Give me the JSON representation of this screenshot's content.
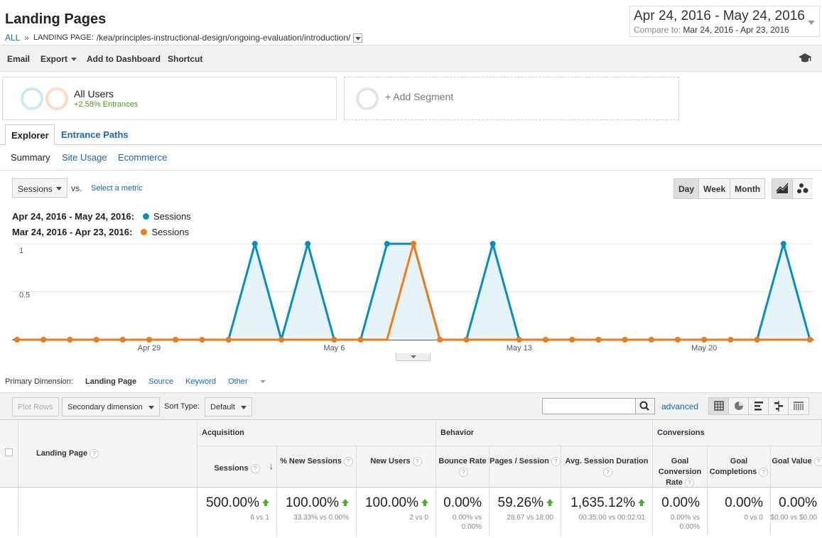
{
  "header": {
    "title": "Landing Pages",
    "crumb_all": "ALL",
    "crumb_sep": "»",
    "crumb_label": "LANDING PAGE:",
    "crumb_value": "/kea/principles-instructional-design/ongoing-evaluation/introduction/"
  },
  "date_range": {
    "main": "Apr 24, 2016 - May 24, 2016",
    "compare_label": "Compare to:",
    "compare_value": "Mar 24, 2016 - Apr 23, 2016"
  },
  "toolbar": {
    "email": "Email",
    "export": "Export",
    "add_to_dashboard": "Add to Dashboard",
    "shortcut": "Shortcut"
  },
  "segments": {
    "seg1_title": "All Users",
    "seg1_sub": "+2.58% Entrances",
    "add_segment": "+ Add Segment",
    "ring_colors": [
      "#8ec7e6",
      "#f4b78b"
    ]
  },
  "tabs": {
    "explorer": "Explorer",
    "entrance_paths": "Entrance Paths"
  },
  "subtabs": {
    "summary": "Summary",
    "site_usage": "Site Usage",
    "ecommerce": "Ecommerce"
  },
  "metric_controls": {
    "metric": "Sessions",
    "vs": "vs.",
    "select_metric": "Select a metric",
    "day": "Day",
    "week": "Week",
    "month": "Month"
  },
  "legend": {
    "current_range": "Apr 24, 2016 - May 24, 2016:",
    "current_metric": "Sessions",
    "compare_range": "Mar 24, 2016 - Apr 23, 2016:",
    "compare_metric": "Sessions"
  },
  "chart_data": {
    "type": "area",
    "ylim": [
      0,
      1
    ],
    "yticks": [
      {
        "v": 0.5,
        "label": "0.5"
      },
      {
        "v": 1,
        "label": "1"
      }
    ],
    "xtick_labels": [
      {
        "i": 5,
        "label": "Apr 29"
      },
      {
        "i": 12,
        "label": "May 6"
      },
      {
        "i": 19,
        "label": "May 13"
      },
      {
        "i": 26,
        "label": "May 20"
      }
    ],
    "point_count": 31,
    "colors": {
      "current": "#058dc7",
      "compare": "#ed7e17",
      "fill": "#e6f4fa"
    },
    "series": [
      {
        "name": "Sessions",
        "period": "Apr 24, 2016 - May 24, 2016",
        "values": [
          0,
          0,
          0,
          0,
          0,
          0,
          0,
          0,
          0,
          1,
          0,
          1,
          0,
          0,
          1,
          1,
          0,
          0,
          1,
          0,
          0,
          0,
          0,
          0,
          0,
          0,
          0,
          0,
          0,
          1,
          0
        ]
      },
      {
        "name": "Sessions",
        "period": "Mar 24, 2016 - Apr 23, 2016",
        "values": [
          0,
          0,
          0,
          0,
          0,
          0,
          0,
          0,
          0,
          0,
          0,
          0,
          0,
          0,
          0,
          1,
          0,
          0,
          0,
          0,
          0,
          0,
          0,
          0,
          0,
          0,
          0,
          0,
          0,
          0,
          0
        ]
      }
    ]
  },
  "dimension_bar": {
    "label": "Primary Dimension:",
    "active": "Landing Page",
    "source": "Source",
    "keyword": "Keyword",
    "other": "Other"
  },
  "table_controls": {
    "plot_rows": "Plot Rows",
    "secondary_dimension": "Secondary dimension",
    "sort_type_label": "Sort Type:",
    "sort_type_value": "Default",
    "advanced": "advanced"
  },
  "table": {
    "first_col": "Landing Page",
    "groups": {
      "acquisition": "Acquisition",
      "behavior": "Behavior",
      "conversions": "Conversions"
    },
    "columns": [
      {
        "label": "Sessions",
        "value": "500.00%",
        "up": true,
        "sub1": "6 vs 1",
        "sub2": ""
      },
      {
        "label": "% New Sessions",
        "value": "100.00%",
        "up": true,
        "sub1": "33.33% vs 0.00%",
        "sub2": ""
      },
      {
        "label": "New Users",
        "value": "100.00%",
        "up": true,
        "sub1": "2 vs 0",
        "sub2": ""
      },
      {
        "label": "Bounce Rate",
        "value": "0.00%",
        "up": false,
        "sub1": "0.00% vs",
        "sub2": "0.00%"
      },
      {
        "label": "Pages / Session",
        "value": "59.26%",
        "up": true,
        "sub1": "28.67 vs 18.00",
        "sub2": ""
      },
      {
        "label": "Avg. Session Duration",
        "value": "1,635.12%",
        "up": true,
        "sub1": "00:35:00 vs 00:02:01",
        "sub2": ""
      },
      {
        "label": "Goal Conversion Rate",
        "value": "0.00%",
        "up": false,
        "sub1": "0.00% vs",
        "sub2": "0.00%"
      },
      {
        "label": "Goal Completions",
        "value": "0.00%",
        "up": false,
        "sub1": "0 vs 0",
        "sub2": ""
      },
      {
        "label": "Goal Value",
        "value": "0.00%",
        "up": false,
        "sub1": "$0.00 vs $0.00",
        "sub2": ""
      }
    ]
  }
}
